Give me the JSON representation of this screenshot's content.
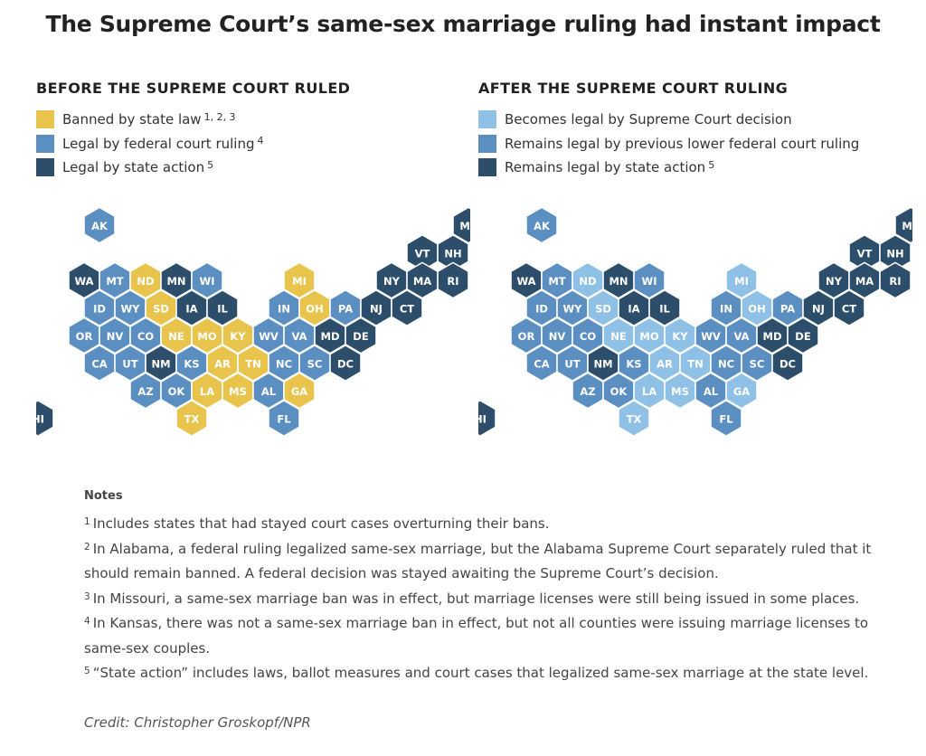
{
  "title": "The Supreme Court’s same-sex marriage ruling had instant impact",
  "colors": {
    "banned": "#e8c44d",
    "federal": "#5b8fc2",
    "state": "#2d4e6b",
    "supreme": "#8fc0e5"
  },
  "panels": [
    {
      "id": "before",
      "title": "BEFORE THE SUPREME COURT RULED",
      "legend": [
        {
          "category": "banned",
          "label": "Banned by state law",
          "sup": "1, 2, 3"
        },
        {
          "category": "federal",
          "label": "Legal by federal court ruling",
          "sup": "4"
        },
        {
          "category": "state",
          "label": "Legal by state action",
          "sup": "5"
        }
      ]
    },
    {
      "id": "after",
      "title": "AFTER THE SUPREME COURT RULING",
      "legend": [
        {
          "category": "supreme",
          "label": "Becomes legal by Supreme Court decision",
          "sup": ""
        },
        {
          "category": "federal",
          "label": "Remains legal by previous lower federal court ruling",
          "sup": ""
        },
        {
          "category": "state",
          "label": "Remains legal by state action",
          "sup": "5"
        }
      ]
    }
  ],
  "states": [
    {
      "abbr": "AK",
      "before": "federal",
      "after": "federal"
    },
    {
      "abbr": "ME",
      "before": "state",
      "after": "state"
    },
    {
      "abbr": "VT",
      "before": "state",
      "after": "state"
    },
    {
      "abbr": "NH",
      "before": "state",
      "after": "state"
    },
    {
      "abbr": "WA",
      "before": "state",
      "after": "state"
    },
    {
      "abbr": "MT",
      "before": "federal",
      "after": "federal"
    },
    {
      "abbr": "ND",
      "before": "banned",
      "after": "supreme"
    },
    {
      "abbr": "MN",
      "before": "state",
      "after": "state"
    },
    {
      "abbr": "WI",
      "before": "federal",
      "after": "federal"
    },
    {
      "abbr": "MI",
      "before": "banned",
      "after": "supreme"
    },
    {
      "abbr": "NY",
      "before": "state",
      "after": "state"
    },
    {
      "abbr": "MA",
      "before": "state",
      "after": "state"
    },
    {
      "abbr": "RI",
      "before": "state",
      "after": "state"
    },
    {
      "abbr": "ID",
      "before": "federal",
      "after": "federal"
    },
    {
      "abbr": "WY",
      "before": "federal",
      "after": "federal"
    },
    {
      "abbr": "SD",
      "before": "banned",
      "after": "supreme"
    },
    {
      "abbr": "IA",
      "before": "state",
      "after": "state"
    },
    {
      "abbr": "IL",
      "before": "state",
      "after": "state"
    },
    {
      "abbr": "IN",
      "before": "federal",
      "after": "federal"
    },
    {
      "abbr": "OH",
      "before": "banned",
      "after": "supreme"
    },
    {
      "abbr": "PA",
      "before": "federal",
      "after": "federal"
    },
    {
      "abbr": "NJ",
      "before": "state",
      "after": "state"
    },
    {
      "abbr": "CT",
      "before": "state",
      "after": "state"
    },
    {
      "abbr": "OR",
      "before": "federal",
      "after": "federal"
    },
    {
      "abbr": "NV",
      "before": "federal",
      "after": "federal"
    },
    {
      "abbr": "CO",
      "before": "federal",
      "after": "federal"
    },
    {
      "abbr": "NE",
      "before": "banned",
      "after": "supreme"
    },
    {
      "abbr": "MO",
      "before": "banned",
      "after": "supreme"
    },
    {
      "abbr": "KY",
      "before": "banned",
      "after": "supreme"
    },
    {
      "abbr": "WV",
      "before": "federal",
      "after": "federal"
    },
    {
      "abbr": "VA",
      "before": "federal",
      "after": "federal"
    },
    {
      "abbr": "MD",
      "before": "state",
      "after": "state"
    },
    {
      "abbr": "DE",
      "before": "state",
      "after": "state"
    },
    {
      "abbr": "CA",
      "before": "federal",
      "after": "federal"
    },
    {
      "abbr": "UT",
      "before": "federal",
      "after": "federal"
    },
    {
      "abbr": "NM",
      "before": "state",
      "after": "state"
    },
    {
      "abbr": "KS",
      "before": "federal",
      "after": "federal"
    },
    {
      "abbr": "AR",
      "before": "banned",
      "after": "supreme"
    },
    {
      "abbr": "TN",
      "before": "banned",
      "after": "supreme"
    },
    {
      "abbr": "NC",
      "before": "federal",
      "after": "federal"
    },
    {
      "abbr": "SC",
      "before": "federal",
      "after": "federal"
    },
    {
      "abbr": "DC",
      "before": "state",
      "after": "state"
    },
    {
      "abbr": "AZ",
      "before": "federal",
      "after": "federal"
    },
    {
      "abbr": "OK",
      "before": "federal",
      "after": "federal"
    },
    {
      "abbr": "LA",
      "before": "banned",
      "after": "supreme"
    },
    {
      "abbr": "MS",
      "before": "banned",
      "after": "supreme"
    },
    {
      "abbr": "AL",
      "before": "federal",
      "after": "federal"
    },
    {
      "abbr": "GA",
      "before": "banned",
      "after": "supreme"
    },
    {
      "abbr": "HI",
      "before": "state",
      "after": "state"
    },
    {
      "abbr": "TX",
      "before": "banned",
      "after": "supreme"
    },
    {
      "abbr": "FL",
      "before": "federal",
      "after": "federal"
    }
  ],
  "notes": {
    "title": "Notes",
    "items": [
      {
        "sup": "1",
        "text": "Includes states that had stayed court cases overturning their bans."
      },
      {
        "sup": "2",
        "text": "In Alabama, a federal ruling legalized same-sex marriage, but the Alabama Supreme Court separately ruled that it should remain banned. A federal decision was stayed awaiting the Supreme Court’s decision."
      },
      {
        "sup": "3",
        "text": "In Missouri, a same-sex marriage ban was in effect, but marriage licenses were still being issued in some places."
      },
      {
        "sup": "4",
        "text": "In Kansas, there was not a same-sex marriage ban in effect, but not all counties were issuing marriage licenses to same-sex couples."
      },
      {
        "sup": "5",
        "text": "“State action” includes laws, ballot measures and court cases that legalized same-sex marriage at the state level."
      }
    ]
  },
  "credit": "Credit: Christopher Groskopf/NPR"
}
